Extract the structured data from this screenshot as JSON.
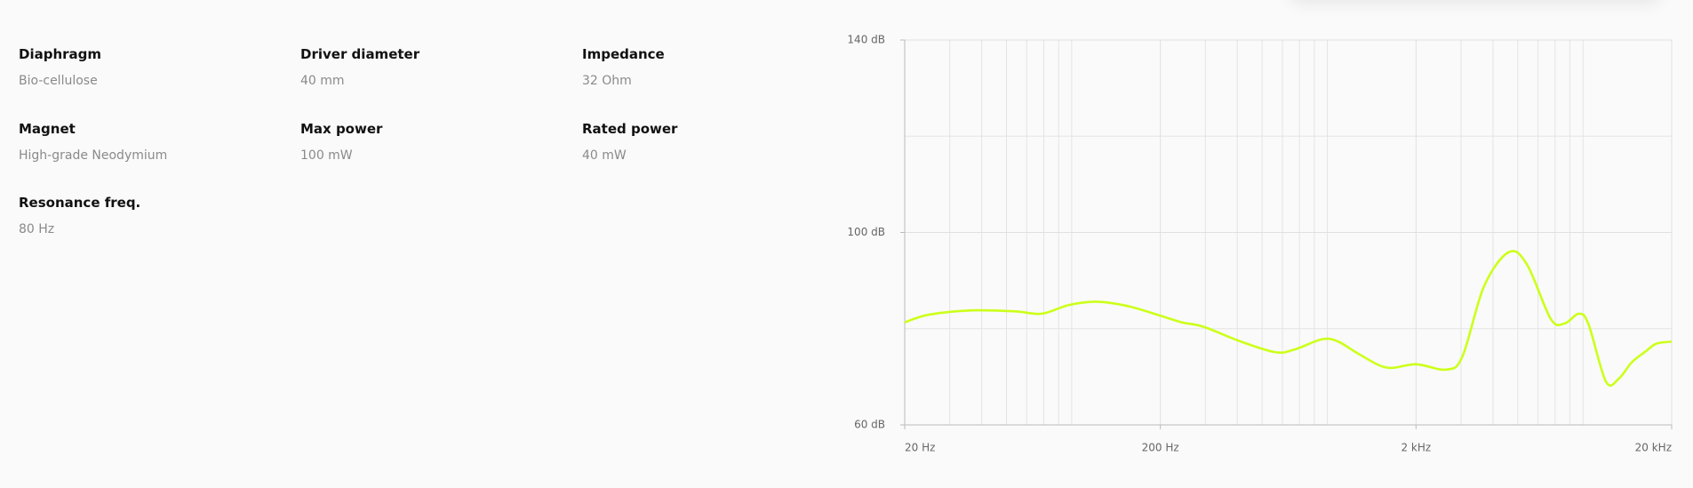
{
  "specs": [
    {
      "label": "Diaphragm",
      "value": "Bio-cellulose"
    },
    {
      "label": "Driver diameter",
      "value": "40 mm"
    },
    {
      "label": "Impedance",
      "value": "32 Ohm"
    },
    {
      "label": "Magnet",
      "value": "High-grade Neodymium"
    },
    {
      "label": "Max power",
      "value": "100 mW"
    },
    {
      "label": "Rated power",
      "value": "40 mW"
    },
    {
      "label": "Resonance freq.",
      "value": "80 Hz"
    }
  ],
  "chart_data": {
    "type": "line",
    "color": "#ccff1a",
    "xscale": "log",
    "grid": true,
    "x": [
      20,
      24.8,
      36.5,
      53.9,
      68.7,
      87.5,
      112,
      149,
      200,
      243,
      295,
      414,
      565,
      673,
      859,
      994,
      1206,
      1538,
      2000,
      2625,
      3037,
      3690,
      4612,
      5440,
      6735,
      7640,
      8672,
      9460,
      11060,
      12420,
      13960,
      15840,
      17460,
      20000
    ],
    "values": [
      81.3,
      82.9,
      83.8,
      83.6,
      83.1,
      84.9,
      85.6,
      84.7,
      82.7,
      81.3,
      80.4,
      77.3,
      75.1,
      75.7,
      77.8,
      77.3,
      74.6,
      71.9,
      72.6,
      71.5,
      74.2,
      88.8,
      95.9,
      93.3,
      82.0,
      81.1,
      83.1,
      80.9,
      69.0,
      69.6,
      73.0,
      75.3,
      76.9,
      77.3
    ],
    "xlim": [
      20,
      20000
    ],
    "ylim": [
      60,
      140
    ],
    "xticks": [
      {
        "value": 20,
        "label": "20 Hz"
      },
      {
        "value": 200,
        "label": "200 Hz"
      },
      {
        "value": 2000,
        "label": "2 kHz"
      },
      {
        "value": 20000,
        "label": "20 kHz"
      }
    ],
    "yticks": [
      {
        "value": 60,
        "label": "60 dB"
      },
      {
        "value": 100,
        "label": "100 dB"
      },
      {
        "value": 140,
        "label": "140 dB"
      }
    ],
    "x_minor_ticks": [
      30,
      40,
      50,
      60,
      70,
      80,
      90,
      300,
      400,
      500,
      600,
      700,
      800,
      900,
      3000,
      4000,
      5000,
      6000,
      7000,
      8000,
      9000
    ],
    "y_minor_ticks": [
      80,
      120
    ]
  }
}
